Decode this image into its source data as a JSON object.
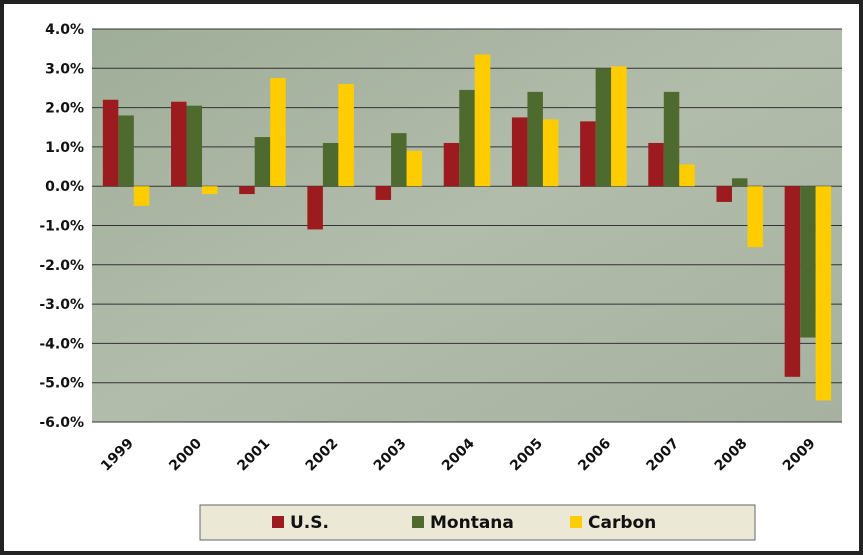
{
  "chart_data": {
    "type": "bar",
    "categories": [
      "1999",
      "2000",
      "2001",
      "2002",
      "2003",
      "2004",
      "2005",
      "2006",
      "2007",
      "2008",
      "2009"
    ],
    "series": [
      {
        "name": "U.S.",
        "color": "#9b1b1e",
        "values": [
          2.2,
          2.15,
          -0.2,
          -1.1,
          -0.35,
          1.1,
          1.75,
          1.65,
          1.1,
          -0.4,
          -4.85
        ]
      },
      {
        "name": "Montana",
        "color": "#4f6a2f",
        "values": [
          1.8,
          2.05,
          1.25,
          1.1,
          1.35,
          2.45,
          2.4,
          3.0,
          2.4,
          0.2,
          -3.85
        ]
      },
      {
        "name": "Carbon",
        "color": "#ffcc00",
        "values": [
          -0.5,
          -0.2,
          2.75,
          2.6,
          0.9,
          3.35,
          1.7,
          3.05,
          0.55,
          -1.55,
          -5.45
        ]
      }
    ],
    "ylim": [
      -6,
      4
    ],
    "yticks": [
      {
        "value": -6,
        "label": "-6.0%"
      },
      {
        "value": -5,
        "label": "-5.0%"
      },
      {
        "value": -4,
        "label": "-4.0%"
      },
      {
        "value": -3,
        "label": "-3.0%"
      },
      {
        "value": -2,
        "label": "-2.0%"
      },
      {
        "value": -1,
        "label": "-1.0%"
      },
      {
        "value": 0,
        "label": "0.0%"
      },
      {
        "value": 1,
        "label": "1.0%"
      },
      {
        "value": 2,
        "label": "2.0%"
      },
      {
        "value": 3,
        "label": "3.0%"
      },
      {
        "value": 4,
        "label": "4.0%"
      }
    ],
    "grid": true,
    "legend": "bottom"
  }
}
